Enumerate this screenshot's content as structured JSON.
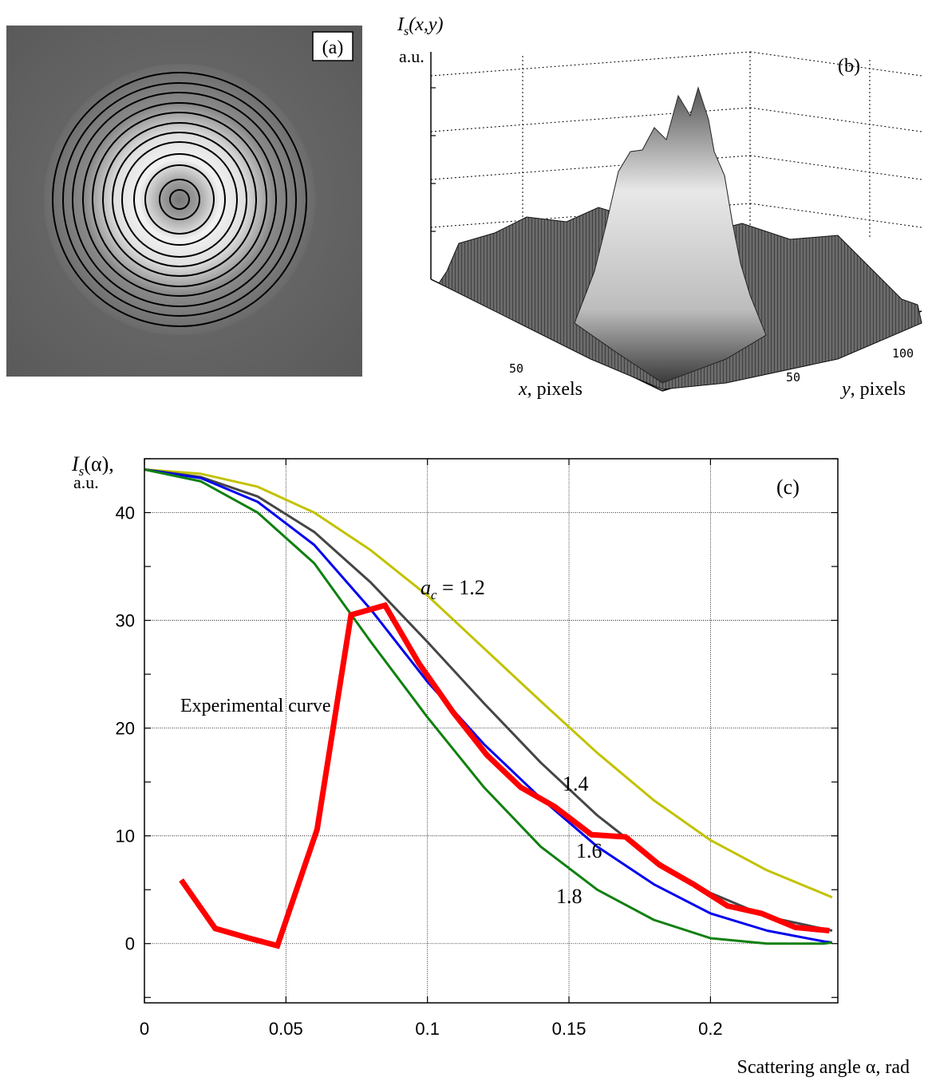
{
  "panel_a": {
    "label": "(a)"
  },
  "panel_b": {
    "label": "(b)",
    "zlabel_main": "I",
    "zlabel_sub": "s",
    "zlabel_args": "(x,y)",
    "zlabel_unit": "a.u.",
    "xlabel_var": "x",
    "xlabel_rest": ", pixels",
    "ylabel_var": "y",
    "ylabel_rest": ", pixels",
    "x_ticks": [
      "50"
    ],
    "y_ticks": [
      "50",
      "100"
    ]
  },
  "chart_data": {
    "type": "line",
    "label": "(c)",
    "ylabel_main": "I",
    "ylabel_sub": "s",
    "ylabel_args": "(α),",
    "ylabel_unit": "a.u.",
    "xlabel": "Scattering angle α, rad",
    "xlim": [
      0,
      0.245
    ],
    "ylim": [
      -5.5,
      45
    ],
    "x_ticks": [
      0,
      0.05,
      0.1,
      0.15,
      0.2
    ],
    "x_tick_labels": [
      "0",
      "0.05",
      "0.1",
      "0.15",
      "0.2"
    ],
    "y_ticks": [
      0,
      10,
      20,
      30,
      40
    ],
    "y_tick_labels": [
      "0",
      "10",
      "20",
      "30",
      "40"
    ],
    "grid": true,
    "series": [
      {
        "name": "a_c = 1.2",
        "label_prefix": "a",
        "label_sub": "c",
        "label_rest": " = 1.2",
        "color": "#c2c200",
        "x": [
          0,
          0.02,
          0.04,
          0.06,
          0.08,
          0.1,
          0.12,
          0.14,
          0.16,
          0.18,
          0.2,
          0.22,
          0.243
        ],
        "y": [
          44.0,
          43.6,
          42.4,
          40.0,
          36.5,
          32.3,
          27.4,
          22.5,
          17.7,
          13.3,
          9.6,
          6.8,
          4.3
        ]
      },
      {
        "name": "1.4",
        "label": "1.4",
        "color": "#454545",
        "x": [
          0,
          0.02,
          0.04,
          0.06,
          0.08,
          0.1,
          0.12,
          0.14,
          0.16,
          0.18,
          0.2,
          0.22,
          0.243
        ],
        "y": [
          44.0,
          43.3,
          41.5,
          38.2,
          33.5,
          28.0,
          22.3,
          16.8,
          11.9,
          7.8,
          4.7,
          2.5,
          1.2
        ]
      },
      {
        "name": "1.6",
        "label": "1.6",
        "color": "#0000ee",
        "x": [
          0,
          0.02,
          0.04,
          0.06,
          0.08,
          0.1,
          0.12,
          0.14,
          0.16,
          0.18,
          0.2,
          0.22,
          0.24,
          0.243
        ],
        "y": [
          44.0,
          43.2,
          41.0,
          37.0,
          31.0,
          24.3,
          18.5,
          13.5,
          9.0,
          5.5,
          2.8,
          1.2,
          0.2,
          0.1
        ]
      },
      {
        "name": "1.8",
        "label": "1.8",
        "color": "#108010",
        "x": [
          0,
          0.02,
          0.04,
          0.06,
          0.08,
          0.1,
          0.12,
          0.14,
          0.16,
          0.18,
          0.2,
          0.22,
          0.24,
          0.243
        ],
        "y": [
          44.0,
          42.9,
          40.0,
          35.3,
          28.0,
          21.0,
          14.5,
          9.0,
          5.0,
          2.2,
          0.5,
          0.0,
          0.0,
          0.1
        ]
      },
      {
        "name": "Experimental curve",
        "label": "Experimental curve",
        "color": "#ff0000",
        "x": [
          0.013,
          0.025,
          0.037,
          0.047,
          0.061,
          0.073,
          0.085,
          0.097,
          0.109,
          0.121,
          0.133,
          0.145,
          0.158,
          0.17,
          0.182,
          0.194,
          0.206,
          0.218,
          0.23,
          0.242
        ],
        "y": [
          5.9,
          1.4,
          0.5,
          -0.2,
          10.6,
          30.5,
          31.4,
          26.0,
          21.5,
          17.5,
          14.5,
          12.7,
          10.1,
          9.9,
          7.3,
          5.5,
          3.5,
          2.8,
          1.5,
          1.2
        ]
      }
    ]
  }
}
